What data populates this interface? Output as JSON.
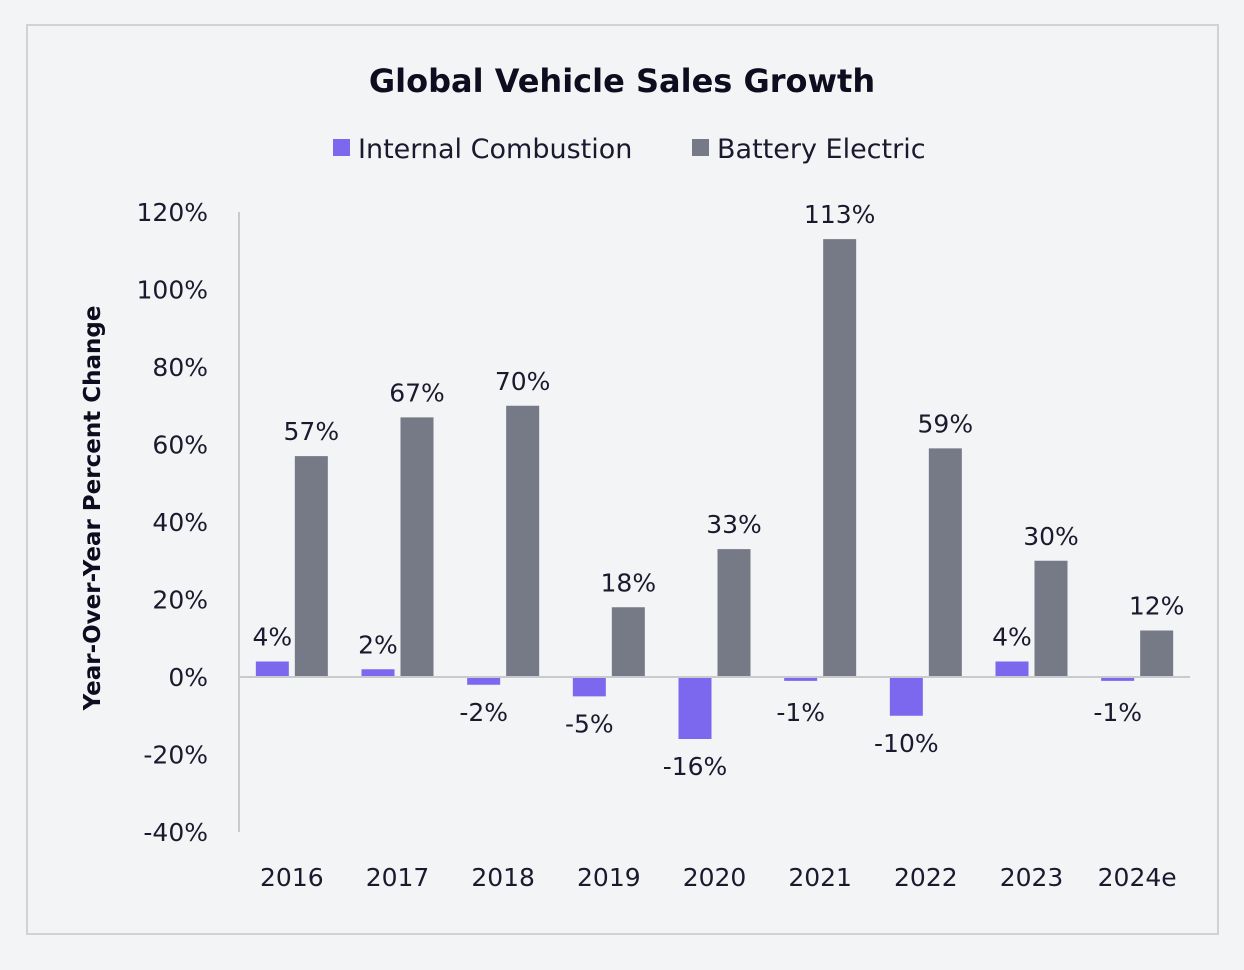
{
  "chart_data": {
    "type": "bar",
    "title": "Global Vehicle Sales Growth",
    "ylabel": "Year-Over-Year Percent Change",
    "xlabel": "",
    "categories": [
      "2016",
      "2017",
      "2018",
      "2019",
      "2020",
      "2021",
      "2022",
      "2023",
      "2024e"
    ],
    "series": [
      {
        "name": "Internal Combustion",
        "color": "#7b68ee",
        "values": [
          4,
          2,
          -2,
          -5,
          -16,
          -1,
          -10,
          4,
          -1
        ],
        "labels": [
          "4%",
          "2%",
          "-2%",
          "-5%",
          "-16%",
          "-1%",
          "-10%",
          "4%",
          "-1%"
        ]
      },
      {
        "name": "Battery Electric",
        "color": "#767986",
        "values": [
          57,
          67,
          70,
          18,
          33,
          113,
          59,
          30,
          12
        ],
        "labels": [
          "57%",
          "67%",
          "70%",
          "18%",
          "33%",
          "113%",
          "59%",
          "30%",
          "12%"
        ]
      }
    ],
    "ylim": [
      -40,
      120
    ],
    "yticks": [
      120,
      100,
      80,
      60,
      40,
      20,
      0,
      -20,
      -40
    ],
    "ytick_labels": [
      "120%",
      "100%",
      "80%",
      "60%",
      "40%",
      "20%",
      "0%",
      "-20%",
      "-40%"
    ],
    "legend_position": "top-center",
    "grid": false
  }
}
